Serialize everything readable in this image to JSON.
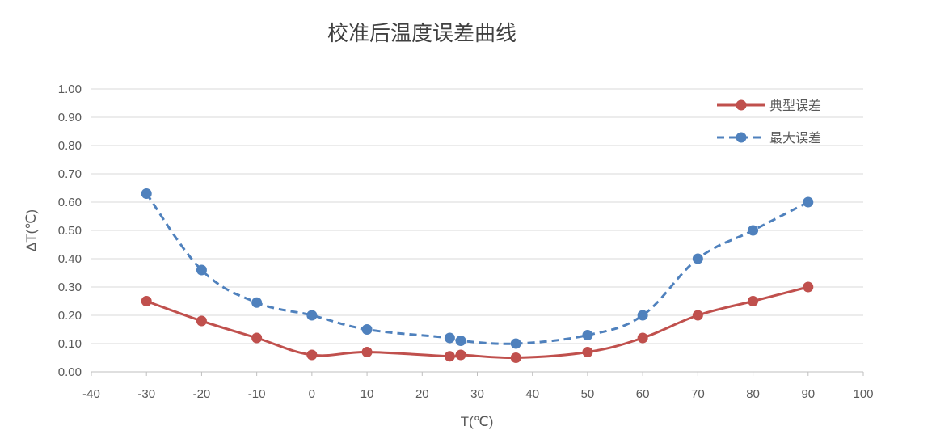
{
  "chart_data": {
    "type": "line",
    "title": "校准后温度误差曲线",
    "xlabel": "T(℃)",
    "ylabel": "ΔT(℃)",
    "xlim": [
      -40,
      100
    ],
    "ylim": [
      0,
      1.0
    ],
    "x_ticks": [
      "-40",
      "-30",
      "-20",
      "-10",
      "0",
      "10",
      "20",
      "30",
      "40",
      "50",
      "60",
      "70",
      "80",
      "90",
      "100"
    ],
    "y_ticks": [
      "0.00",
      "0.10",
      "0.20",
      "0.30",
      "0.40",
      "0.50",
      "0.60",
      "0.70",
      "0.80",
      "0.90",
      "1.00"
    ],
    "grid": true,
    "legend_position": "top-right",
    "series": [
      {
        "name": "典型误差",
        "color": "#c0504d",
        "style": "solid",
        "smooth": true,
        "points": [
          [
            -30,
            0.25
          ],
          [
            -20,
            0.18
          ],
          [
            -10,
            0.12
          ],
          [
            0,
            0.06
          ],
          [
            10,
            0.07
          ],
          [
            25,
            0.055
          ],
          [
            27,
            0.06
          ],
          [
            37,
            0.05
          ],
          [
            50,
            0.07
          ],
          [
            60,
            0.12
          ],
          [
            70,
            0.2
          ],
          [
            80,
            0.25
          ],
          [
            90,
            0.3
          ]
        ]
      },
      {
        "name": "最大误差",
        "color": "#4f81bd",
        "style": "dashed",
        "smooth": true,
        "points": [
          [
            -30,
            0.63
          ],
          [
            -20,
            0.36
          ],
          [
            -10,
            0.245
          ],
          [
            0,
            0.2
          ],
          [
            10,
            0.15
          ],
          [
            25,
            0.12
          ],
          [
            27,
            0.11
          ],
          [
            37,
            0.1
          ],
          [
            50,
            0.13
          ],
          [
            60,
            0.2
          ],
          [
            70,
            0.4
          ],
          [
            80,
            0.5
          ],
          [
            90,
            0.6
          ]
        ]
      }
    ]
  }
}
